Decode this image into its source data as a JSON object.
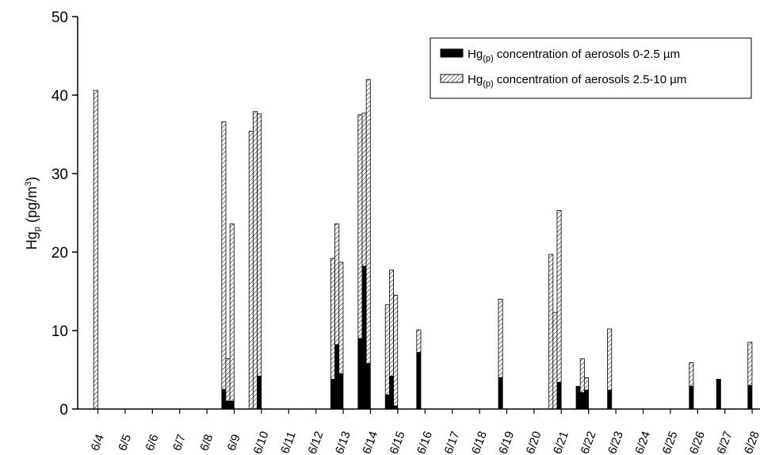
{
  "chart_data": {
    "type": "bar",
    "stacked": true,
    "ylabel": {
      "main": "Hg",
      "sub": "p",
      "unit_pre": " (pg/m",
      "unit_sup": "3",
      "unit_post": ")"
    },
    "ylim": [
      0,
      50
    ],
    "yticks": [
      0,
      10,
      20,
      30,
      40,
      50
    ],
    "categories": [
      "6/4",
      "6/5",
      "6/6",
      "6/7",
      "6/8",
      "6/9",
      "6/10",
      "6/11",
      "6/12",
      "6/13",
      "6/14",
      "6/15",
      "6/16",
      "6/17",
      "6/18",
      "6/19",
      "6/20",
      "6/21",
      "6/22",
      "6/23",
      "6/24",
      "6/25",
      "6/26",
      "6/27",
      "6/28"
    ],
    "series": [
      {
        "name_main": "Hg",
        "name_sub": "(p)",
        "name_rest": " concentration of aerosols 0-2.5 µm",
        "color": "#000000"
      },
      {
        "name_main": "Hg",
        "name_sub": "(p)",
        "name_rest": " concentration of aerosols 2.5-10 µm",
        "color": "hatch"
      }
    ],
    "bars": [
      {
        "x": 3.92,
        "fine": 0.0,
        "total": 40.6
      },
      {
        "x": 8.62,
        "fine": 2.5,
        "total": 36.6
      },
      {
        "x": 8.77,
        "fine": 1.0,
        "total": 6.4
      },
      {
        "x": 8.92,
        "fine": 1.0,
        "total": 23.6
      },
      {
        "x": 9.62,
        "fine": 0.0,
        "total": 35.4
      },
      {
        "x": 9.77,
        "fine": 0.0,
        "total": 37.9
      },
      {
        "x": 9.92,
        "fine": 4.2,
        "total": 37.6
      },
      {
        "x": 12.62,
        "fine": 3.8,
        "total": 19.2
      },
      {
        "x": 12.77,
        "fine": 8.2,
        "total": 23.6
      },
      {
        "x": 12.92,
        "fine": 4.5,
        "total": 18.7
      },
      {
        "x": 13.62,
        "fine": 9.0,
        "total": 37.5
      },
      {
        "x": 13.77,
        "fine": 18.2,
        "total": 37.7
      },
      {
        "x": 13.92,
        "fine": 5.8,
        "total": 42.0
      },
      {
        "x": 14.62,
        "fine": 1.8,
        "total": 13.3
      },
      {
        "x": 14.77,
        "fine": 4.2,
        "total": 17.7
      },
      {
        "x": 14.92,
        "fine": 0.4,
        "total": 14.5
      },
      {
        "x": 15.77,
        "fine": 7.2,
        "total": 10.1
      },
      {
        "x": 18.77,
        "fine": 4.0,
        "total": 14.0
      },
      {
        "x": 20.62,
        "fine": 0.0,
        "total": 19.7
      },
      {
        "x": 20.77,
        "fine": 0.0,
        "total": 12.3
      },
      {
        "x": 20.92,
        "fine": 3.4,
        "total": 25.3
      },
      {
        "x": 21.62,
        "fine": 2.8,
        "total": 2.9
      },
      {
        "x": 21.77,
        "fine": 2.1,
        "total": 6.4
      },
      {
        "x": 21.92,
        "fine": 2.4,
        "total": 4.0
      },
      {
        "x": 22.77,
        "fine": 2.4,
        "total": 10.2
      },
      {
        "x": 25.77,
        "fine": 2.9,
        "total": 5.9
      },
      {
        "x": 26.77,
        "fine": 3.8,
        "total": 3.8
      },
      {
        "x": 27.92,
        "fine": 3.0,
        "total": 8.5
      }
    ],
    "grid": false,
    "legend_position": "top-right"
  }
}
